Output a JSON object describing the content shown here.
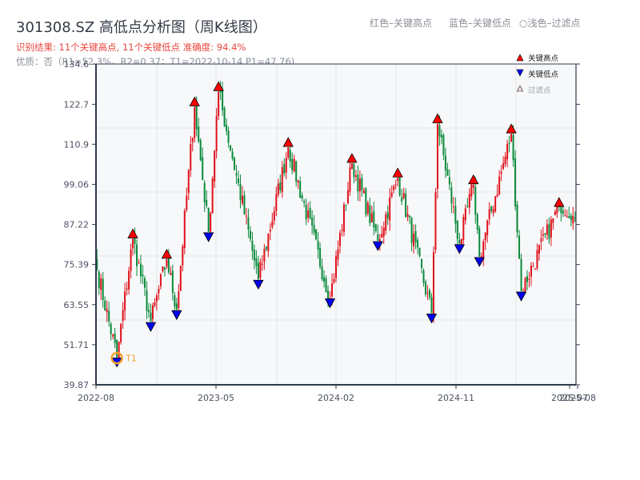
{
  "header": {
    "title": "301308.SZ 高低点分析图（周K线图）",
    "result_line": "识别结果: 11个关键高点, 11个关键低点  准确度: 94.4%",
    "quality_line": "优质：否（R1=52.3%，R2=0.37；T1=2022-10-14 P1=47.76)",
    "legend_red": "红色–关键高点",
    "legend_blue": "蓝色–关键低点",
    "legend_light": "○浅色–过滤点"
  },
  "colors": {
    "up": "#e0101a",
    "down": "#0a8a3a",
    "high_marker": "#ff0000",
    "low_marker": "#0000ee",
    "t1_ring": "#f0a030",
    "plot_bg": "#f7f8fa",
    "grid": "#e2e4e8",
    "axis": "#2f3b4c"
  },
  "chart_data": {
    "type": "candlestick",
    "title": "301308.SZ 高低点分析图（周K线图）",
    "xlabel": "",
    "ylabel": "",
    "ylim": [
      39.87,
      134.6
    ],
    "yticks": [
      134.6,
      122.7,
      110.9,
      99.06,
      87.22,
      75.39,
      63.55,
      51.71,
      39.87
    ],
    "xticks": [
      "2022-08",
      "2023-05",
      "2024-02",
      "2024-11",
      "2025-07",
      "2025-08"
    ],
    "grid": true,
    "legend": {
      "position": "top-right",
      "entries": [
        "关键高点",
        "关键低点",
        "过滤点"
      ]
    },
    "turning_points_price": [
      [
        0,
        74
      ],
      [
        10,
        48
      ],
      [
        18,
        83
      ],
      [
        27,
        58.5
      ],
      [
        35,
        77
      ],
      [
        40,
        62
      ],
      [
        49,
        122
      ],
      [
        56,
        85
      ],
      [
        61,
        126.5
      ],
      [
        81,
        71
      ],
      [
        96,
        110
      ],
      [
        117,
        65.5
      ],
      [
        128,
        105.3
      ],
      [
        141,
        82.4
      ],
      [
        151,
        101
      ],
      [
        168,
        61
      ],
      [
        171,
        117
      ],
      [
        182,
        81.5
      ],
      [
        189,
        99
      ],
      [
        192,
        77.7
      ],
      [
        208,
        114
      ],
      [
        213,
        67.5
      ],
      [
        232,
        92.3
      ],
      [
        240,
        89
      ]
    ],
    "key_highs": [
      {
        "i": 18,
        "price": 83
      },
      {
        "i": 35,
        "price": 77
      },
      {
        "i": 49,
        "price": 122
      },
      {
        "i": 61,
        "price": 126.5
      },
      {
        "i": 96,
        "price": 110
      },
      {
        "i": 128,
        "price": 105.3
      },
      {
        "i": 151,
        "price": 101
      },
      {
        "i": 171,
        "price": 117
      },
      {
        "i": 189,
        "price": 99
      },
      {
        "i": 208,
        "price": 114
      },
      {
        "i": 232,
        "price": 92.3
      }
    ],
    "key_lows": [
      {
        "i": 10,
        "price": 48
      },
      {
        "i": 27,
        "price": 58.5
      },
      {
        "i": 40,
        "price": 62
      },
      {
        "i": 56,
        "price": 85
      },
      {
        "i": 81,
        "price": 71
      },
      {
        "i": 117,
        "price": 65.5
      },
      {
        "i": 141,
        "price": 82.4
      },
      {
        "i": 168,
        "price": 61
      },
      {
        "i": 182,
        "price": 81.5
      },
      {
        "i": 192,
        "price": 77.7
      },
      {
        "i": 213,
        "price": 67.5
      }
    ],
    "annotations": [
      {
        "text": "T1",
        "i": 10,
        "price": 47.76
      }
    ],
    "n_candles": 241
  }
}
